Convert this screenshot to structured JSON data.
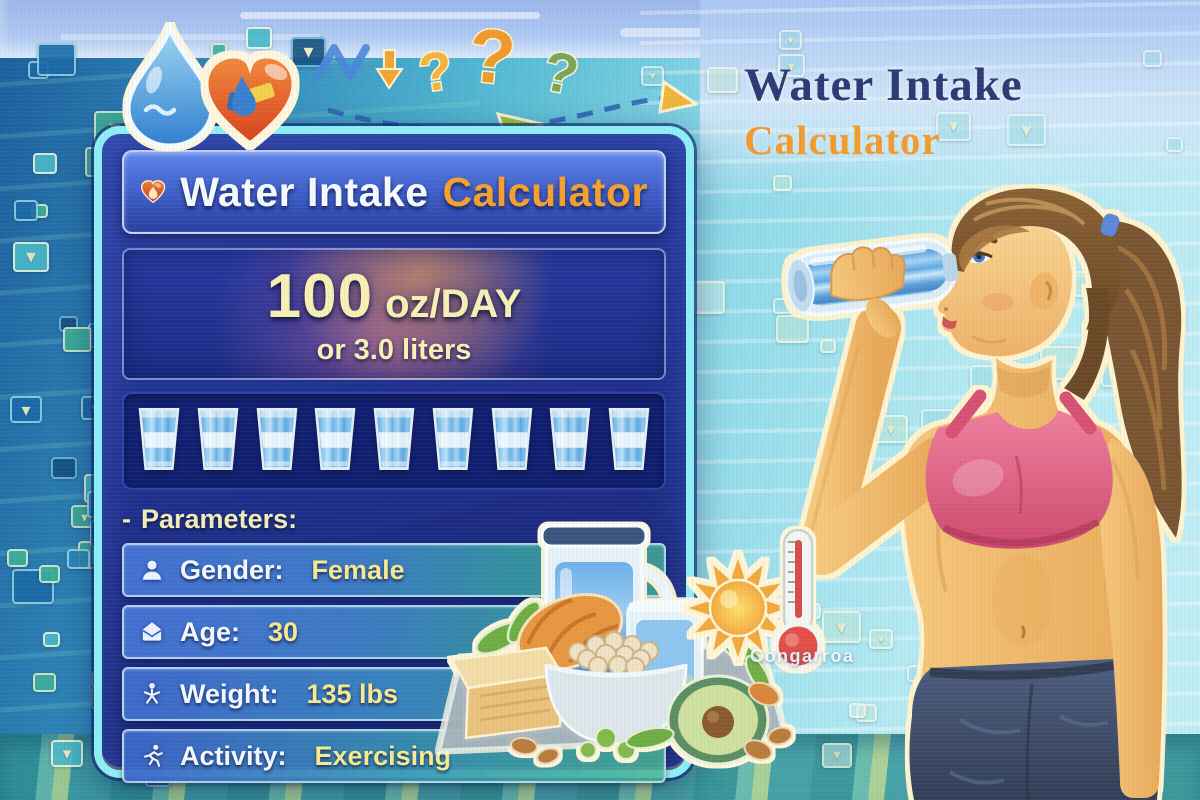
{
  "panel": {
    "title": {
      "main": "Water Intake",
      "accent": "Calculator",
      "icon": "heart-drop-icon"
    },
    "result": {
      "value": "100",
      "unit": "oz/DAY",
      "alt": "or 3.0 liters"
    },
    "glasses": {
      "count": 9,
      "icon": "water-glass-icon"
    },
    "parameters": {
      "marker": "-",
      "label": "Parameters:",
      "rows": [
        {
          "icon": "person-icon",
          "label": "Gender:",
          "value": "Female"
        },
        {
          "icon": "envelope-icon",
          "label": "Age:",
          "value": "30"
        },
        {
          "icon": "figure-icon",
          "label": "Weight:",
          "value": "135 lbs"
        },
        {
          "icon": "runner-icon",
          "label": "Activity:",
          "value": "Exercising"
        }
      ]
    }
  },
  "headline": {
    "line1": "Water Intake",
    "line2": "Calculator"
  },
  "scene": {
    "caption": "Congarroa",
    "doodle_question_marks": [
      "?",
      "?",
      "?"
    ],
    "elements": [
      "water-drop-icon",
      "heart-icon",
      "woman-drinking-water",
      "water-pitcher",
      "water-glass",
      "healthy-food",
      "sun-icon",
      "thermometer-icon"
    ]
  },
  "colors": {
    "accent_orange": "#f5a02e",
    "headline_navy": "#2d3b74",
    "panel_border_cyan": "#8deef5",
    "panel_navy": "#20308c",
    "value_yellow": "#f7ea8e",
    "result_cream": "#f8efb4",
    "row_blue": "#4874d6",
    "row_teal": "#46b096"
  }
}
